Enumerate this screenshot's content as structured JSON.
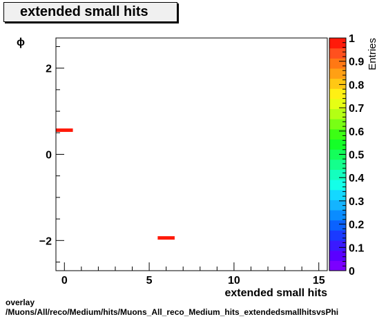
{
  "histogram": {
    "title": "extended small hits"
  },
  "footer": {
    "line1": "overlay",
    "line2": "/Muons/All/reco/Medium/hits/Muons_All_reco_Medium_hits_extendedsmallhitsvsPhi"
  },
  "colors": {
    "background": "#ffffff",
    "frame": "#000000",
    "fill_max": "#ff1a0a",
    "palette": [
      "#7b00ff",
      "#5a00ff",
      "#3a1aff",
      "#1a3aff",
      "#0a62ff",
      "#0a8cff",
      "#14b4ff",
      "#14d8ff",
      "#14ffe8",
      "#14ffbe",
      "#14ff8c",
      "#14ff5a",
      "#14ff28",
      "#3cff14",
      "#78ff14",
      "#b4ff14",
      "#e6ff14",
      "#fff014",
      "#ffc814",
      "#ffa014",
      "#ff7814",
      "#ff501e",
      "#ff1a0a"
    ]
  },
  "chart_data": {
    "type": "heatmap",
    "title": "extended small hits",
    "xlabel": "extended small hits",
    "ylabel": "ϕ",
    "zlabel": "Entries",
    "xlim": [
      -0.5,
      15.5
    ],
    "ylim": [
      -2.7,
      2.7
    ],
    "zlim": [
      0,
      1
    ],
    "x_ticks": [
      0,
      5,
      10,
      15
    ],
    "x_tick_labels": [
      "0",
      "5",
      "10",
      "15"
    ],
    "y_ticks": [
      -2,
      0,
      2
    ],
    "y_tick_labels": [
      "−2",
      "0",
      "2"
    ],
    "z_ticks": [
      0,
      0.1,
      0.2,
      0.3,
      0.4,
      0.5,
      0.6,
      0.7,
      0.8,
      0.9,
      1
    ],
    "z_tick_labels": [
      "0",
      "0.1",
      "0.2",
      "0.3",
      "0.4",
      "0.5",
      "0.6",
      "0.7",
      "0.8",
      "0.9",
      "1"
    ],
    "bins": [
      {
        "x0": -0.5,
        "x1": 0.5,
        "y0": 0.52,
        "y1": 0.6,
        "value": 1
      },
      {
        "x0": 5.5,
        "x1": 6.5,
        "y0": -1.98,
        "y1": -1.9,
        "value": 1
      }
    ],
    "grid": false,
    "legend": "colorbar-right"
  }
}
